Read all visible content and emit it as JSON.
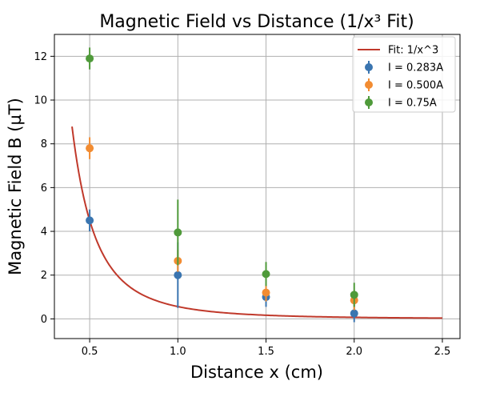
{
  "chart_data": {
    "type": "scatter",
    "title": "Magnetic Field vs Distance (1/x³ Fit)",
    "xlabel": "Distance x (cm)",
    "ylabel": "Magnetic Field B (µT)",
    "xlim": [
      0.3,
      2.6
    ],
    "ylim": [
      -0.9,
      13.0
    ],
    "xticks": [
      0.5,
      1.0,
      1.5,
      2.0,
      2.5
    ],
    "xtick_labels": [
      "0.5",
      "1.0",
      "1.5",
      "2.0",
      "2.5"
    ],
    "yticks": [
      0,
      2,
      4,
      6,
      8,
      10,
      12
    ],
    "ytick_labels": [
      "0",
      "2",
      "4",
      "6",
      "8",
      "10",
      "12"
    ],
    "grid": true,
    "legend_position": "top-right",
    "fit": {
      "label": "Fit: 1/x^3",
      "color": "#c0392b",
      "coefficient": 0.5625,
      "x_range": [
        0.4,
        2.5
      ]
    },
    "series": [
      {
        "name": "I = 0.283A",
        "color": "#3a75b0",
        "x": [
          0.5,
          1.0,
          1.5,
          2.0
        ],
        "y": [
          4.5,
          2.0,
          1.0,
          0.25
        ],
        "yerr": [
          0.5,
          1.5,
          0.45,
          0.4
        ]
      },
      {
        "name": "I = 0.500A",
        "color": "#f28c32",
        "x": [
          0.5,
          1.0,
          1.5,
          2.0
        ],
        "y": [
          7.8,
          2.65,
          1.2,
          0.85
        ],
        "yerr": [
          0.5,
          0.5,
          0.4,
          0.45
        ]
      },
      {
        "name": "I = 0.75A",
        "color": "#4f9a3a",
        "x": [
          0.5,
          1.0,
          1.5,
          2.0
        ],
        "y": [
          11.9,
          3.95,
          2.05,
          1.1
        ],
        "yerr": [
          0.5,
          1.5,
          0.55,
          0.55
        ]
      }
    ]
  }
}
